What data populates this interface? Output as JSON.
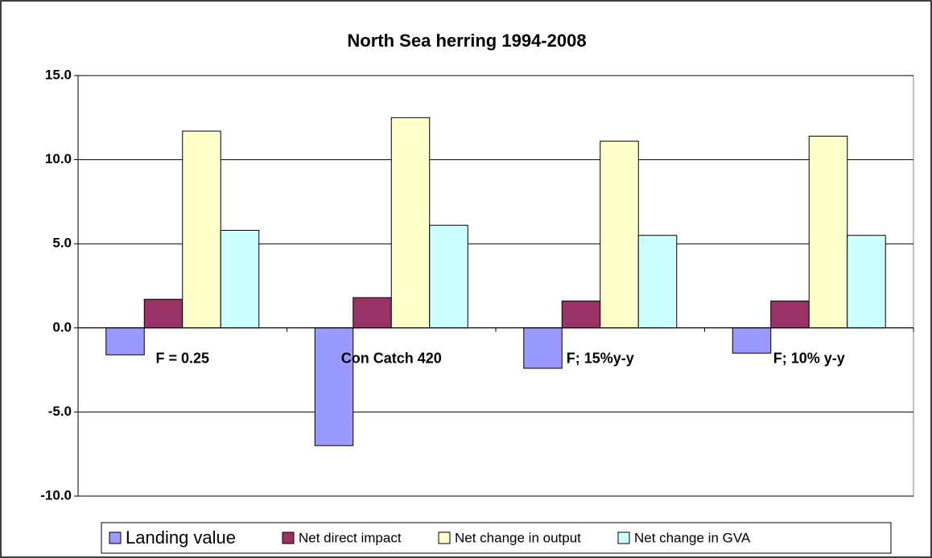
{
  "chart_data": {
    "type": "bar",
    "title": "North Sea herring 1994-2008",
    "categories": [
      "F = 0.25",
      "Con Catch 420",
      "F; 15%y-y",
      "F; 10% y-y"
    ],
    "series": [
      {
        "name": "Landing value",
        "color": "#9999ff",
        "values": [
          -1.6,
          -7.0,
          -2.4,
          -1.5
        ]
      },
      {
        "name": "Net direct impact",
        "color": "#993366",
        "values": [
          1.7,
          1.8,
          1.6,
          1.6
        ]
      },
      {
        "name": "Net change in output",
        "color": "#ffffcc",
        "values": [
          11.7,
          12.5,
          11.1,
          11.4
        ]
      },
      {
        "name": "Net change in GVA",
        "color": "#ccffff",
        "values": [
          5.8,
          6.1,
          5.5,
          5.5
        ]
      }
    ],
    "ylim": [
      -10,
      15
    ],
    "yticks": [
      {
        "value": -10,
        "label": "-10.0"
      },
      {
        "value": -5,
        "label": "-5.0"
      },
      {
        "value": 0,
        "label": "0.0"
      },
      {
        "value": 5,
        "label": "5.0"
      },
      {
        "value": 10,
        "label": "10.0"
      },
      {
        "value": 15,
        "label": "15.0"
      }
    ],
    "grid": true,
    "legend": "bottom"
  }
}
